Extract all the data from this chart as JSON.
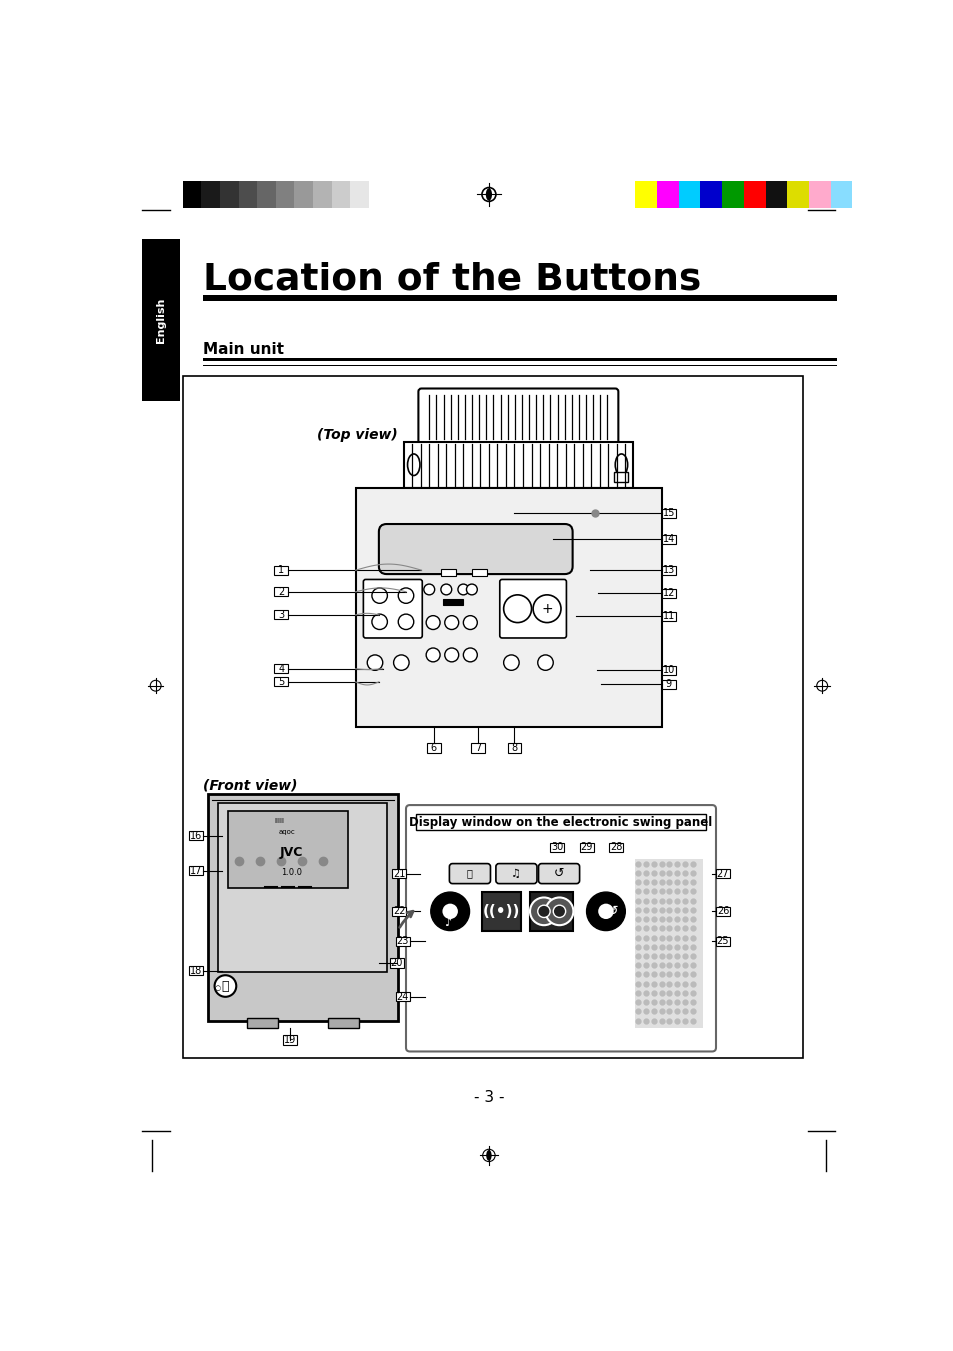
{
  "title": "Location of the Buttons",
  "section_label": "English",
  "subsection": "Main unit",
  "page_number": "- 3 -",
  "bg_color": "#ffffff",
  "color_bars_left": [
    "#000000",
    "#1a1a1a",
    "#333333",
    "#4d4d4d",
    "#666666",
    "#808080",
    "#999999",
    "#b3b3b3",
    "#cccccc",
    "#e6e6e6",
    "#ffffff"
  ],
  "color_bars_right": [
    "#ffff00",
    "#ff00ff",
    "#00ccff",
    "#0000cc",
    "#009900",
    "#ff0000",
    "#111111",
    "#dddd00",
    "#ffaacc",
    "#88ddff"
  ]
}
